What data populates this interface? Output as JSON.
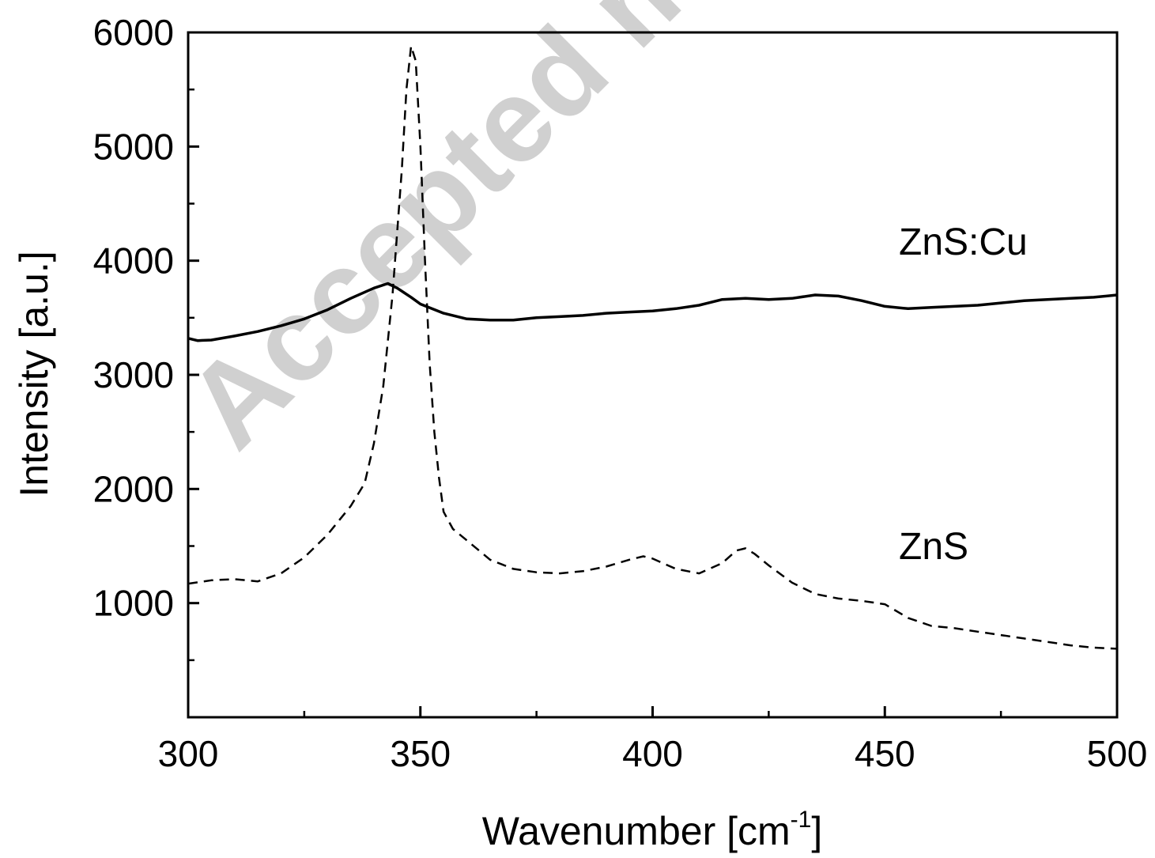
{
  "chart_data": {
    "type": "line",
    "xlabel": "Wavenumber [cm",
    "xlabel_sup": "-1",
    "xlabel_end": "]",
    "ylabel": "Intensity [a.u.]",
    "xlim": [
      300,
      500
    ],
    "ylim": [
      0,
      6000
    ],
    "xticks": [
      300,
      350,
      400,
      450,
      500
    ],
    "xminor": [
      325,
      375,
      425,
      475
    ],
    "yticks": [
      1000,
      2000,
      3000,
      4000,
      5000,
      6000
    ],
    "yminor": [
      500,
      1500,
      2500,
      3500,
      4500,
      5500
    ],
    "grid": false,
    "watermark": "Accepted manu",
    "series": [
      {
        "name": "ZnS:Cu",
        "style": "solid",
        "x": [
          300,
          302,
          305,
          310,
          315,
          320,
          325,
          330,
          335,
          340,
          343,
          345,
          348,
          350,
          355,
          360,
          365,
          370,
          375,
          380,
          385,
          390,
          395,
          400,
          405,
          410,
          415,
          420,
          425,
          430,
          435,
          440,
          445,
          450,
          455,
          460,
          465,
          470,
          475,
          480,
          485,
          490,
          495,
          500
        ],
        "y": [
          3320,
          3300,
          3305,
          3340,
          3380,
          3430,
          3490,
          3570,
          3670,
          3760,
          3800,
          3760,
          3680,
          3620,
          3540,
          3490,
          3480,
          3480,
          3500,
          3510,
          3520,
          3540,
          3550,
          3560,
          3580,
          3610,
          3660,
          3670,
          3660,
          3670,
          3700,
          3690,
          3650,
          3600,
          3580,
          3590,
          3600,
          3610,
          3630,
          3650,
          3660,
          3670,
          3680,
          3700
        ]
      },
      {
        "name": "ZnS",
        "style": "dashed",
        "x": [
          300,
          305,
          310,
          315,
          320,
          325,
          330,
          335,
          338,
          340,
          342,
          344,
          346,
          347,
          348,
          349,
          350,
          351,
          352,
          353,
          354,
          355,
          357,
          360,
          365,
          370,
          375,
          380,
          385,
          390,
          395,
          398,
          400,
          405,
          410,
          415,
          418,
          420,
          422,
          425,
          430,
          435,
          440,
          445,
          450,
          455,
          460,
          465,
          470,
          475,
          480,
          485,
          490,
          495,
          500
        ],
        "y": [
          1170,
          1200,
          1210,
          1190,
          1260,
          1400,
          1600,
          1850,
          2050,
          2400,
          2900,
          3700,
          4800,
          5500,
          5880,
          5750,
          5000,
          4000,
          3100,
          2500,
          2100,
          1800,
          1650,
          1550,
          1380,
          1300,
          1270,
          1260,
          1280,
          1320,
          1380,
          1410,
          1390,
          1300,
          1260,
          1350,
          1460,
          1480,
          1430,
          1330,
          1180,
          1080,
          1040,
          1020,
          990,
          870,
          800,
          780,
          750,
          720,
          690,
          660,
          630,
          610,
          600
        ]
      }
    ]
  }
}
